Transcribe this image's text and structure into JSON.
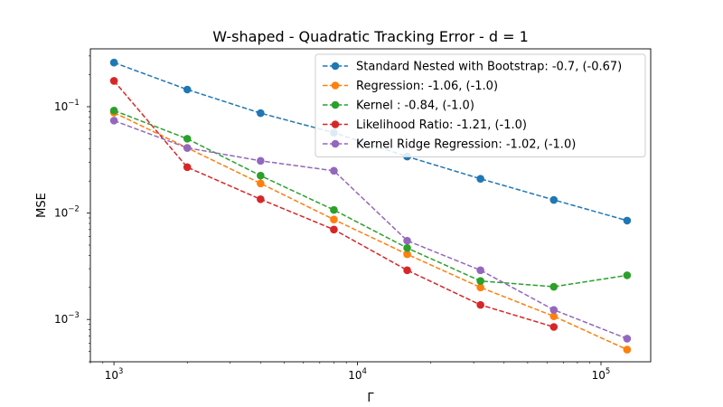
{
  "chart_data": {
    "type": "line",
    "title": "W-shaped - Quadratic Tracking Error - d = 1",
    "xlabel": "Γ",
    "ylabel": "MSE",
    "xscale": "log",
    "yscale": "log",
    "xlim": [
      800,
      160000
    ],
    "ylim": [
      0.0004,
      0.35
    ],
    "grid": false,
    "legend_position": "top-right",
    "x_ticks": [
      {
        "value": 1000,
        "base": "10",
        "exp": "3"
      },
      {
        "value": 10000,
        "base": "10",
        "exp": "4"
      },
      {
        "value": 100000,
        "base": "10",
        "exp": "5"
      }
    ],
    "y_ticks": [
      {
        "value": 0.001,
        "base": "10",
        "exp": "−3"
      },
      {
        "value": 0.01,
        "base": "10",
        "exp": "−2"
      },
      {
        "value": 0.1,
        "base": "10",
        "exp": "−1"
      }
    ],
    "series": [
      {
        "name": "Standard Nested with Bootstrap: -0.7, (-0.67)",
        "color": "#1f77b4",
        "x": [
          1000,
          2000,
          4000,
          8000,
          16000,
          32000,
          64000,
          128000
        ],
        "values": [
          0.26,
          0.145,
          0.087,
          0.057,
          0.034,
          0.021,
          0.0133,
          0.0085
        ]
      },
      {
        "name": "Regression: -1.06, (-1.0)",
        "color": "#ff7f0e",
        "x": [
          1000,
          2000,
          4000,
          8000,
          16000,
          32000,
          64000,
          128000
        ],
        "values": [
          0.088,
          0.041,
          0.019,
          0.0087,
          0.0041,
          0.002,
          0.00107,
          0.00052
        ]
      },
      {
        "name": "Kernel : -0.84, (-1.0)",
        "color": "#2ca02c",
        "x": [
          1000,
          2000,
          4000,
          8000,
          16000,
          32000,
          64000,
          128000
        ],
        "values": [
          0.092,
          0.05,
          0.0225,
          0.0107,
          0.0047,
          0.0023,
          0.00203,
          0.0026
        ]
      },
      {
        "name": "Likelihood Ratio: -1.21, (-1.0)",
        "color": "#d62728",
        "x": [
          1000,
          2000,
          4000,
          8000,
          16000,
          32000,
          64000
        ],
        "values": [
          0.175,
          0.027,
          0.0135,
          0.007,
          0.0029,
          0.00137,
          0.00085
        ]
      },
      {
        "name": "Kernel Ridge Regression: -1.02, (-1.0)",
        "color": "#9467bd",
        "x": [
          1000,
          2000,
          4000,
          8000,
          16000,
          32000,
          64000,
          128000
        ],
        "values": [
          0.074,
          0.041,
          0.031,
          0.025,
          0.0055,
          0.0029,
          0.00123,
          0.00066
        ]
      }
    ]
  }
}
